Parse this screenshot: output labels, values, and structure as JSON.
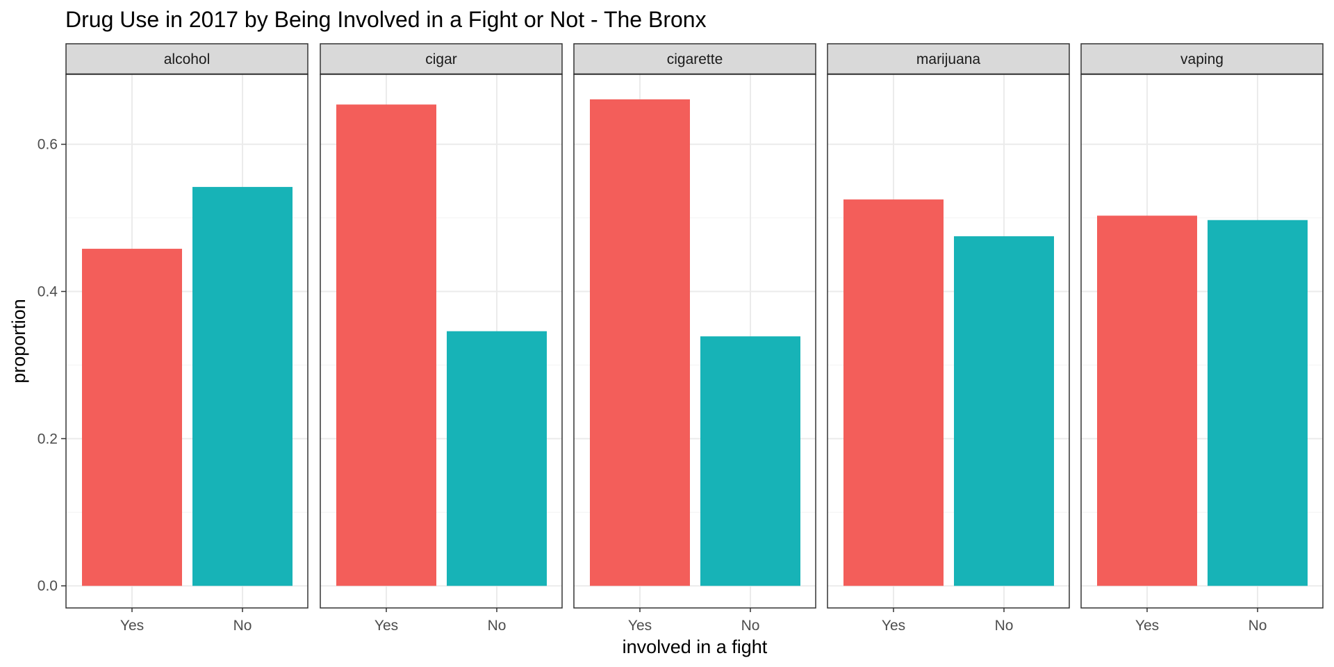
{
  "chart_data": {
    "type": "bar",
    "title": "Drug Use in 2017 by Being Involved in a Fight or Not  - The Bronx",
    "xlabel": "involved in a fight",
    "ylabel": "proportion",
    "ylim": [
      -0.03,
      0.695
    ],
    "yticks": [
      0.0,
      0.2,
      0.4,
      0.6
    ],
    "ytick_labels": [
      "0.0",
      "0.2",
      "0.4",
      "0.6"
    ],
    "grid": true,
    "legend": "none",
    "categories": [
      "Yes",
      "No"
    ],
    "colors": {
      "Yes": "#F35E5A",
      "No": "#17B3B7"
    },
    "facets": [
      {
        "name": "alcohol",
        "values": [
          0.458,
          0.542
        ]
      },
      {
        "name": "cigar",
        "values": [
          0.654,
          0.346
        ]
      },
      {
        "name": "cigarette",
        "values": [
          0.661,
          0.339
        ]
      },
      {
        "name": "marijuana",
        "values": [
          0.525,
          0.475
        ]
      },
      {
        "name": "vaping",
        "values": [
          0.503,
          0.497
        ]
      }
    ]
  }
}
